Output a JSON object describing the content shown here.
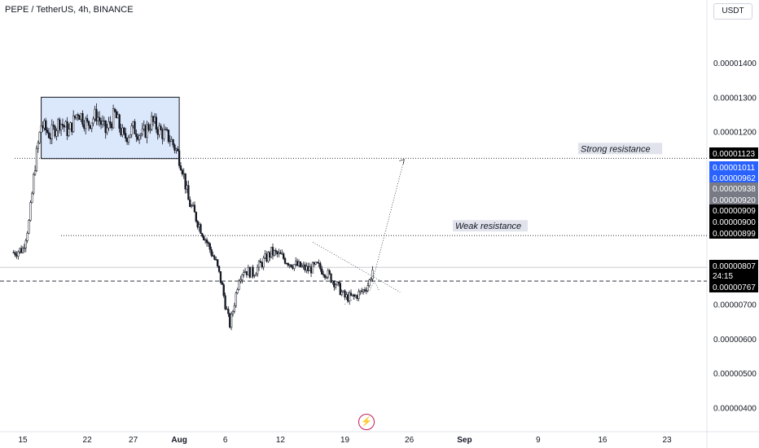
{
  "header": {
    "title": "PEPE / TetherUS, 4h, BINANCE",
    "currency": "USDT"
  },
  "colors": {
    "candle": "#131722",
    "axis_text": "#131722",
    "box_fill": "#dbe7fb",
    "box_stroke": "#131722",
    "highlight_blue": "#2962ff",
    "dark_tag": "#000000",
    "gray_tag": "#787b86"
  },
  "icons": [
    "lightning-icon"
  ],
  "chart_data": {
    "type": "candlestick",
    "title": "",
    "xlabel": "",
    "ylabel": "",
    "ylim": [
      3.8e-07,
      1.5e-05
    ],
    "x_ticks": [
      "15",
      "22",
      "27",
      "Aug",
      "6",
      "12",
      "19",
      "26",
      "Sep",
      "9",
      "16",
      "23"
    ],
    "y_ticks": [
      "0.00000400",
      "0.00000500",
      "0.00000600",
      "0.00000700",
      "0.00001200",
      "0.00001300",
      "0.00001400"
    ],
    "price_tags": [
      {
        "label": "0.00001123",
        "style": "dark"
      },
      {
        "label": "0.00001011",
        "style": "blue"
      },
      {
        "label": "0.00000962",
        "style": "blue"
      },
      {
        "label": "0.00000938",
        "style": "gray"
      },
      {
        "label": "0.00000920",
        "style": "gray"
      },
      {
        "label": "0.00000909",
        "style": "dark"
      },
      {
        "label": "0.00000900",
        "style": "dark"
      },
      {
        "label": "0.00000899",
        "style": "dark"
      },
      {
        "label": "0.00000807",
        "style": "dark"
      },
      {
        "label": "24:15",
        "style": "dark"
      },
      {
        "label": "0.00000767",
        "style": "dark"
      }
    ],
    "annotations": [
      {
        "text": "Strong resistance",
        "level": 1.123e-05
      },
      {
        "text": "Weak resistance",
        "level": 8.99e-06
      }
    ],
    "consolidation_box": {
      "from_day": 17,
      "to_day": 32,
      "high": 1.3e-05,
      "low": 1.122e-05
    },
    "close_path": [
      [
        14.0,
        8.5e-06
      ],
      [
        15.0,
        8.6e-06
      ],
      [
        15.7,
        9.4e-06
      ],
      [
        16.3,
        1.1e-05
      ],
      [
        17.0,
        1.22e-05
      ],
      [
        18.0,
        1.19e-05
      ],
      [
        19.0,
        1.23e-05
      ],
      [
        20.0,
        1.2e-05
      ],
      [
        21.0,
        1.26e-05
      ],
      [
        22.0,
        1.22e-05
      ],
      [
        23.0,
        1.25e-05
      ],
      [
        24.0,
        1.2e-05
      ],
      [
        25.0,
        1.25e-05
      ],
      [
        26.0,
        1.18e-05
      ],
      [
        27.0,
        1.21e-05
      ],
      [
        28.0,
        1.19e-05
      ],
      [
        29.0,
        1.23e-05
      ],
      [
        30.0,
        1.2e-05
      ],
      [
        31.0,
        1.18e-05
      ],
      [
        31.8,
        1.14e-05
      ],
      [
        32.3,
        1.1e-05
      ],
      [
        33.0,
        1e-05
      ],
      [
        34.0,
        9.4e-06
      ],
      [
        35.0,
        8.8e-06
      ],
      [
        36.0,
        8.2e-06
      ],
      [
        36.6,
        7.6e-06
      ],
      [
        37.0,
        7e-06
      ],
      [
        37.5,
        6.4e-06
      ],
      [
        37.9,
        6.9e-06
      ],
      [
        38.5,
        7.8e-06
      ],
      [
        39.0,
        8e-06
      ],
      [
        40.0,
        7.9e-06
      ],
      [
        41.0,
        8.2e-06
      ],
      [
        42.0,
        8.5e-06
      ],
      [
        43.0,
        8.4e-06
      ],
      [
        44.0,
        8.2e-06
      ],
      [
        45.0,
        8.1e-06
      ],
      [
        46.0,
        8e-06
      ],
      [
        47.0,
        8.1e-06
      ],
      [
        48.0,
        7.9e-06
      ],
      [
        49.0,
        7.6e-06
      ],
      [
        50.0,
        7.2e-06
      ],
      [
        51.0,
        7.2e-06
      ],
      [
        52.0,
        7.4e-06
      ],
      [
        52.6,
        7.6e-06
      ],
      [
        53.0,
        8e-06
      ]
    ],
    "projection_arrow": [
      [
        53.0,
        7.67e-06
      ],
      [
        56.0,
        1.12e-05
      ]
    ],
    "descending_trendline": [
      [
        46.5,
        8.8e-06
      ],
      [
        56.0,
        7.35e-06
      ]
    ]
  }
}
